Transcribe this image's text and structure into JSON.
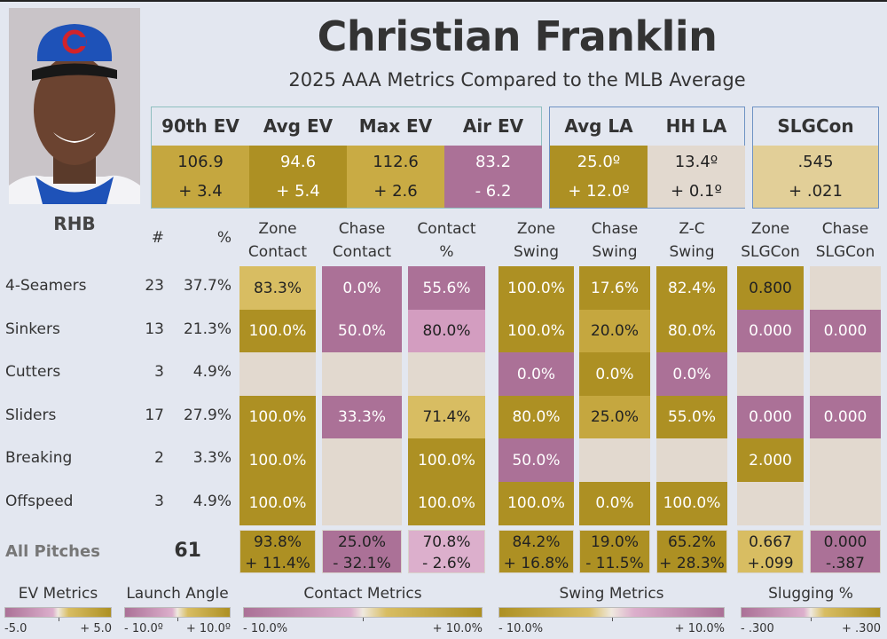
{
  "header": {
    "title": "Christian Franklin",
    "subtitle": "2025 AAA Metrics Compared to the MLB Average",
    "handedness": "RHB"
  },
  "palette": {
    "dark_gold": "#ad9023",
    "mid_gold": "#c5a73f",
    "light_gold": "#d8bd62",
    "tan": "#e2cf98",
    "purple": "#ab7197",
    "light_pink": "#d39dc0",
    "pale_pink": "#dcafcc",
    "neutral": "#e2d9cf",
    "background": "#e3e7f0"
  },
  "summary": {
    "ev": [
      {
        "label": "90th EV",
        "value": "106.9",
        "diff": "+ 3.4",
        "color": "#c5a73f",
        "text": "dark"
      },
      {
        "label": "Avg EV",
        "value": "94.6",
        "diff": "+ 5.4",
        "color": "#ad9023",
        "text": "light"
      },
      {
        "label": "Max EV",
        "value": "112.6",
        "diff": "+ 2.6",
        "color": "#c9ab44",
        "text": "dark"
      },
      {
        "label": "Air EV",
        "value": "83.2",
        "diff": "- 6.2",
        "color": "#ab7197",
        "text": "light"
      }
    ],
    "la": [
      {
        "label": "Avg LA",
        "value": "25.0º",
        "diff": "+ 12.0º",
        "color": "#ad9023",
        "text": "light"
      },
      {
        "label": "HH LA",
        "value": "13.4º",
        "diff": "+ 0.1º",
        "color": "#e2d9cf",
        "text": "dark"
      }
    ],
    "slg": [
      {
        "label": "SLGCon",
        "value": ".545",
        "diff": "+ .021",
        "color": "#e2cf98",
        "text": "dark"
      }
    ]
  },
  "table": {
    "count_header": "#",
    "pct_header": "%",
    "columns": [
      "Zone\nContact",
      "Chase\nContact",
      "Contact\n%",
      "Zone\nSwing",
      "Chase\nSwing",
      "Z-C\nSwing",
      "Zone\nSLGCon",
      "Chase\nSLGCon"
    ],
    "rows": [
      {
        "pitch": "4-Seamers",
        "count": "23",
        "pct": "37.7%",
        "cells": [
          [
            "83.3%",
            "#d8bd62",
            "dark"
          ],
          [
            "0.0%",
            "#ab7197",
            "light"
          ],
          [
            "55.6%",
            "#ab7197",
            "light"
          ],
          [
            "100.0%",
            "#ad9023",
            "light"
          ],
          [
            "17.6%",
            "#ad9023",
            "light"
          ],
          [
            "82.4%",
            "#ad9023",
            "light"
          ],
          [
            "0.800",
            "#ad9023",
            "dark"
          ],
          [
            "",
            "#e2d9cf",
            "dark"
          ]
        ]
      },
      {
        "pitch": "Sinkers",
        "count": "13",
        "pct": "21.3%",
        "cells": [
          [
            "100.0%",
            "#ad9023",
            "light"
          ],
          [
            "50.0%",
            "#ab7197",
            "light"
          ],
          [
            "80.0%",
            "#d39dc0",
            "dark"
          ],
          [
            "100.0%",
            "#ad9023",
            "light"
          ],
          [
            "20.0%",
            "#c5a73f",
            "dark"
          ],
          [
            "80.0%",
            "#ad9023",
            "light"
          ],
          [
            "0.000",
            "#ab7197",
            "light"
          ],
          [
            "0.000",
            "#ab7197",
            "light"
          ]
        ]
      },
      {
        "pitch": "Cutters",
        "count": "3",
        "pct": "4.9%",
        "cells": [
          [
            "",
            "#e2d9cf",
            "dark"
          ],
          [
            "",
            "#e2d9cf",
            "dark"
          ],
          [
            "",
            "#e2d9cf",
            "dark"
          ],
          [
            "0.0%",
            "#ab7197",
            "light"
          ],
          [
            "0.0%",
            "#ad9023",
            "light"
          ],
          [
            "0.0%",
            "#ab7197",
            "light"
          ],
          [
            "",
            "#e2d9cf",
            "dark"
          ],
          [
            "",
            "#e2d9cf",
            "dark"
          ]
        ]
      },
      {
        "pitch": "Sliders",
        "count": "17",
        "pct": "27.9%",
        "cells": [
          [
            "100.0%",
            "#ad9023",
            "light"
          ],
          [
            "33.3%",
            "#ab7197",
            "light"
          ],
          [
            "71.4%",
            "#d8bd62",
            "dark"
          ],
          [
            "80.0%",
            "#ad9023",
            "light"
          ],
          [
            "25.0%",
            "#c5a73f",
            "dark"
          ],
          [
            "55.0%",
            "#ad9023",
            "light"
          ],
          [
            "0.000",
            "#ab7197",
            "light"
          ],
          [
            "0.000",
            "#ab7197",
            "light"
          ]
        ]
      },
      {
        "pitch": "Breaking",
        "count": "2",
        "pct": "3.3%",
        "cells": [
          [
            "100.0%",
            "#ad9023",
            "light"
          ],
          [
            "",
            "#e2d9cf",
            "dark"
          ],
          [
            "100.0%",
            "#ad9023",
            "light"
          ],
          [
            "50.0%",
            "#ab7197",
            "light"
          ],
          [
            "",
            "#e2d9cf",
            "dark"
          ],
          [
            "",
            "#e2d9cf",
            "dark"
          ],
          [
            "2.000",
            "#ad9023",
            "light"
          ],
          [
            "",
            "#e2d9cf",
            "dark"
          ]
        ]
      },
      {
        "pitch": "Offspeed",
        "count": "3",
        "pct": "4.9%",
        "cells": [
          [
            "100.0%",
            "#ad9023",
            "light"
          ],
          [
            "",
            "#e2d9cf",
            "dark"
          ],
          [
            "100.0%",
            "#ad9023",
            "light"
          ],
          [
            "100.0%",
            "#ad9023",
            "light"
          ],
          [
            "0.0%",
            "#ad9023",
            "light"
          ],
          [
            "100.0%",
            "#ad9023",
            "light"
          ],
          [
            "",
            "#e2d9cf",
            "dark"
          ],
          [
            "",
            "#e2d9cf",
            "dark"
          ]
        ]
      }
    ],
    "totals": {
      "label": "All Pitches",
      "count": "61",
      "cells": [
        [
          "93.8%",
          "+ 11.4%",
          "#ad9023"
        ],
        [
          "25.0%",
          "- 32.1%",
          "#ab7197"
        ],
        [
          "70.8%",
          "- 2.6%",
          "#dcafcc"
        ],
        [
          "84.2%",
          "+ 16.8%",
          "#ad9023"
        ],
        [
          "19.0%",
          "- 11.5%",
          "#ad9023"
        ],
        [
          "65.2%",
          "+ 28.3%",
          "#ad9023"
        ],
        [
          "0.667",
          "+.099",
          "#d8bd62"
        ],
        [
          "0.000",
          "-.387",
          "#ab7197"
        ]
      ]
    }
  },
  "legends": [
    {
      "title": "EV Metrics",
      "min": "-5.0",
      "max": "+ 5.0",
      "gradient": "linear-gradient(90deg,#ab7197,#dcafcc 45%,#efe9df 50%,#d8bd62 60%,#ad9023)"
    },
    {
      "title": "Launch Angle",
      "min": "- 10.0º",
      "max": "+ 10.0º",
      "gradient": "linear-gradient(90deg,#ab7197,#dcafcc 45%,#efe9df 50%,#d8bd62 60%,#ad9023)"
    },
    {
      "title": "Contact Metrics",
      "min": "- 10.0%",
      "max": "+ 10.0%",
      "gradient": "linear-gradient(90deg,#ab7197,#dcafcc 45%,#efe9df 50%,#d8bd62 60%,#ad9023)"
    },
    {
      "title": "Swing Metrics",
      "min": "- 10.0%",
      "max": "+ 10.0%",
      "gradient": "linear-gradient(90deg,#ad9023,#d8bd62 40%,#efe9df 50%,#dcafcc 60%,#ab7197)"
    },
    {
      "title": "Slugging %",
      "min": "- .300",
      "max": "+ .300",
      "gradient": "linear-gradient(90deg,#ab7197,#dcafcc 45%,#efe9df 50%,#d8bd62 60%,#ad9023)"
    }
  ]
}
